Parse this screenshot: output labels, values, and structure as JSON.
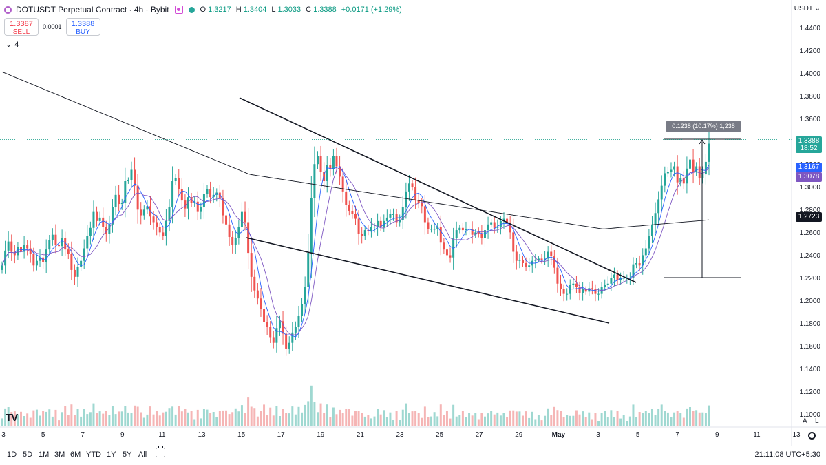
{
  "header": {
    "title": "DOTUSDT Perpetual Contract · 4h · Bybit",
    "ohlc": [
      {
        "k": "O",
        "v": "1.3217"
      },
      {
        "k": "H",
        "v": "1.3404"
      },
      {
        "k": "L",
        "v": "1.3033"
      },
      {
        "k": "C",
        "v": "1.3388"
      },
      {
        "k": "",
        "v": "+0.0171 (+1.29%)"
      }
    ]
  },
  "trade": {
    "sell_price": "1.3387",
    "sell_label": "SELL",
    "spread": "0.0001",
    "buy_price": "1.3388",
    "buy_label": "BUY"
  },
  "indicators_toggle": "4",
  "currency": "USDT",
  "price_axis": [
    "1.4400",
    "1.4200",
    "1.4000",
    "1.3800",
    "1.3600",
    "1.3400",
    "1.3200",
    "1.3000",
    "1.2800",
    "1.2600",
    "1.2400",
    "1.2200",
    "1.2000",
    "1.1800",
    "1.1600",
    "1.1400",
    "1.1200",
    "1.1000"
  ],
  "price_tags": {
    "last_price": "1.3388",
    "countdown": "18:52",
    "ma_fast": "1.3167",
    "ma_slow": "1.3078",
    "ma_long": "1.2723"
  },
  "time_axis": [
    "3",
    "5",
    "7",
    "9",
    "11",
    "13",
    "15",
    "17",
    "19",
    "21",
    "23",
    "25",
    "27",
    "29",
    "May",
    "3",
    "5",
    "7",
    "9",
    "11",
    "13"
  ],
  "measure_label": "0.1238 (10.17%) 1,238",
  "corner": {
    "auto": "A",
    "log": "L"
  },
  "bottom": {
    "ranges": [
      "1D",
      "5D",
      "1M",
      "3M",
      "6M",
      "YTD",
      "1Y",
      "5Y",
      "All"
    ],
    "clock": "21:11:08 UTC+5:30"
  },
  "colors": {
    "up": "#26a69a",
    "down": "#ef5350",
    "vol_up": "#9fd8d1",
    "vol_down": "#f5b5b5",
    "ma_fast": "#2962ff",
    "ma_slow": "#7e57c2",
    "ma_long": "#131722"
  },
  "chart_data": {
    "type": "candlestick",
    "ylim": [
      1.09,
      1.45
    ],
    "closes": [
      1.232,
      1.245,
      1.253,
      1.244,
      1.241,
      1.248,
      1.244,
      1.25,
      1.247,
      1.242,
      1.232,
      1.236,
      1.239,
      1.235,
      1.246,
      1.254,
      1.259,
      1.25,
      1.249,
      1.256,
      1.246,
      1.242,
      1.228,
      1.222,
      1.231,
      1.236,
      1.247,
      1.258,
      1.265,
      1.279,
      1.271,
      1.274,
      1.266,
      1.26,
      1.268,
      1.283,
      1.294,
      1.286,
      1.287,
      1.306,
      1.307,
      1.316,
      1.302,
      1.281,
      1.276,
      1.281,
      1.284,
      1.275,
      1.27,
      1.266,
      1.261,
      1.258,
      1.271,
      1.283,
      1.306,
      1.309,
      1.299,
      1.289,
      1.282,
      1.292,
      1.287,
      1.288,
      1.279,
      1.283,
      1.295,
      1.299,
      1.292,
      1.294,
      1.296,
      1.291,
      1.276,
      1.268,
      1.257,
      1.25,
      1.256,
      1.266,
      1.279,
      1.27,
      1.243,
      1.222,
      1.21,
      1.203,
      1.194,
      1.182,
      1.178,
      1.169,
      1.164,
      1.177,
      1.183,
      1.172,
      1.159,
      1.164,
      1.173,
      1.178,
      1.188,
      1.198,
      1.213,
      1.243,
      1.291,
      1.321,
      1.328,
      1.314,
      1.306,
      1.32,
      1.317,
      1.328,
      1.319,
      1.31,
      1.297,
      1.285,
      1.28,
      1.277,
      1.273,
      1.26,
      1.258,
      1.263,
      1.262,
      1.266,
      1.266,
      1.271,
      1.266,
      1.271,
      1.274,
      1.277,
      1.277,
      1.27,
      1.272,
      1.283,
      1.297,
      1.304,
      1.301,
      1.289,
      1.287,
      1.284,
      1.27,
      1.264,
      1.264,
      1.264,
      1.266,
      1.252,
      1.246,
      1.241,
      1.239,
      1.256,
      1.263,
      1.265,
      1.263,
      1.264,
      1.264,
      1.259,
      1.261,
      1.26,
      1.256,
      1.263,
      1.268,
      1.27,
      1.265,
      1.266,
      1.271,
      1.273,
      1.269,
      1.261,
      1.244,
      1.236,
      1.237,
      1.234,
      1.231,
      1.232,
      1.236,
      1.237,
      1.238,
      1.237,
      1.238,
      1.244,
      1.24,
      1.23,
      1.216,
      1.211,
      1.207,
      1.207,
      1.215,
      1.216,
      1.213,
      1.208,
      1.211,
      1.209,
      1.212,
      1.211,
      1.207,
      1.207,
      1.213,
      1.215,
      1.216,
      1.221,
      1.224,
      1.219,
      1.221,
      1.221,
      1.221,
      1.221,
      1.233,
      1.234,
      1.232,
      1.241,
      1.247,
      1.258,
      1.268,
      1.278,
      1.29,
      1.302,
      1.313,
      1.314,
      1.316,
      1.319,
      1.305,
      1.309,
      1.304,
      1.317,
      1.325,
      1.314,
      1.319,
      1.309,
      1.312,
      1.323,
      1.339
    ]
  }
}
